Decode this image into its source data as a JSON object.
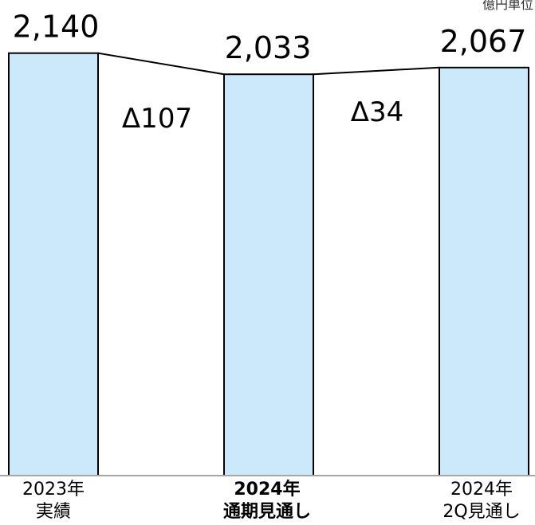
{
  "unit_note": "億円単位",
  "chart_data": {
    "type": "bar",
    "categories": [
      [
        "2023年",
        "実績"
      ],
      [
        "2024年",
        "通期見通し"
      ],
      [
        "2024年",
        "2Q見通し"
      ]
    ],
    "values": [
      2140,
      2033,
      2067
    ],
    "value_labels": [
      "2,140",
      "2,033",
      "2,067"
    ],
    "bold_category_index": 1,
    "differences": [
      "Δ107",
      "Δ34"
    ],
    "colors": {
      "bar_fill": "#cce9fb",
      "bar_stroke": "#000000",
      "connector": "#000000",
      "baseline": "#a6a6a6",
      "text": "#000000"
    },
    "grid": false,
    "legend": "none"
  }
}
